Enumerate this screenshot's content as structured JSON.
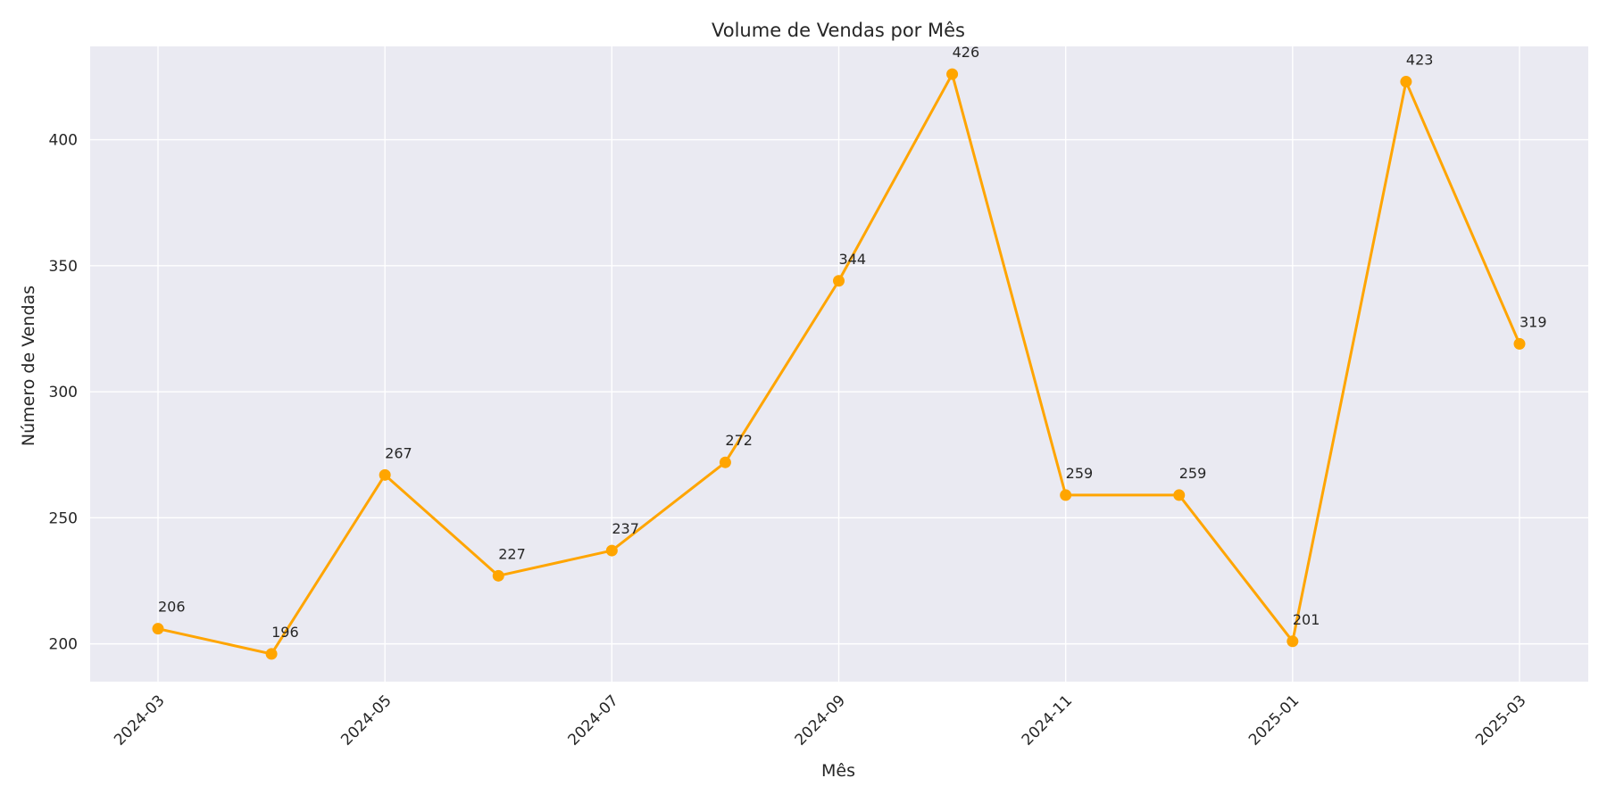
{
  "chart_data": {
    "type": "line",
    "title": "Volume de Vendas por Mês",
    "xlabel": "Mês",
    "ylabel": "Número de Vendas",
    "x": [
      "2024-03",
      "2024-04",
      "2024-05",
      "2024-06",
      "2024-07",
      "2024-08",
      "2024-09",
      "2024-10",
      "2024-11",
      "2024-12",
      "2025-01",
      "2025-02",
      "2025-03"
    ],
    "series": [
      {
        "values": [
          206,
          196,
          267,
          227,
          237,
          272,
          344,
          426,
          259,
          259,
          201,
          423,
          319
        ]
      }
    ],
    "data_labels": [
      "206",
      "196",
      "267",
      "227",
      "237",
      "272",
      "344",
      "426",
      "259",
      "259",
      "201",
      "423",
      "319"
    ],
    "x_ticks": [
      "2024-03",
      "2024-05",
      "2024-07",
      "2024-09",
      "2024-11",
      "2025-01",
      "2025-03"
    ],
    "y_ticks": [
      200,
      250,
      300,
      350,
      400
    ],
    "y_tick_labels": [
      "200",
      "250",
      "300",
      "350",
      "400"
    ],
    "ylim": [
      185,
      437
    ],
    "grid": true,
    "marker": "circle",
    "colors": {
      "line": "#FFA500",
      "plot_background": "#EAEAF2",
      "grid": "#FFFFFF"
    }
  }
}
